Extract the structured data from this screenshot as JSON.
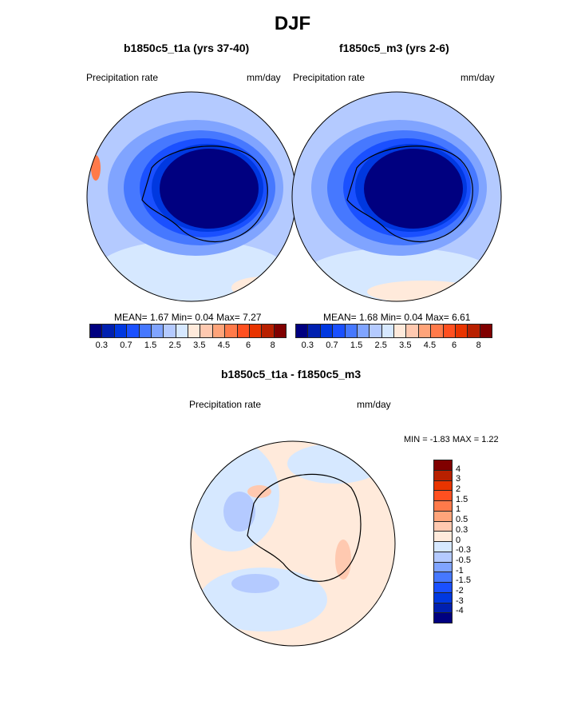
{
  "title": "DJF",
  "panels": [
    {
      "title": "b1850c5_t1a (yrs 37-40)",
      "variable": "Precipitation rate",
      "units": "mm/day",
      "stats": "MEAN=   1.67  Min=   0.04  Max=   7.27"
    },
    {
      "title": "f1850c5_m3 (yrs 2-6)",
      "variable": "Precipitation rate",
      "units": "mm/day",
      "stats": "MEAN=   1.68  Min=   0.04  Max=   6.61"
    }
  ],
  "diff": {
    "title": "b1850c5_t1a - f1850c5_m3",
    "variable": "Precipitation rate",
    "units": "mm/day",
    "stats": "MIN =  -1.83 MAX =   1.22"
  },
  "colorbar": {
    "colors": [
      "#000080",
      "#0020b0",
      "#0038e0",
      "#1a50ff",
      "#4678ff",
      "#80a4ff",
      "#b4caff",
      "#d6e8ff",
      "#ffeadb",
      "#ffc9b0",
      "#ffa47a",
      "#ff7a4a",
      "#ff5020",
      "#e83400",
      "#b82000",
      "#800000"
    ],
    "labels": [
      "0.3",
      "0.7",
      "1.5",
      "2.5",
      "3.5",
      "4.5",
      "6",
      "8"
    ]
  },
  "diff_colorbar": {
    "colors": [
      "#800000",
      "#b82000",
      "#e83400",
      "#ff5020",
      "#ff7a4a",
      "#ffa47a",
      "#ffc9b0",
      "#ffeadb",
      "#d6e8ff",
      "#b4caff",
      "#80a4ff",
      "#4678ff",
      "#1a50ff",
      "#0038e0",
      "#0020b0",
      "#000080"
    ],
    "labels": [
      "4",
      "3",
      "2",
      "1.5",
      "1",
      "0.5",
      "0.3",
      "0",
      "-0.3",
      "-0.5",
      "-1",
      "-1.5",
      "-2",
      "-3",
      "-4"
    ]
  }
}
